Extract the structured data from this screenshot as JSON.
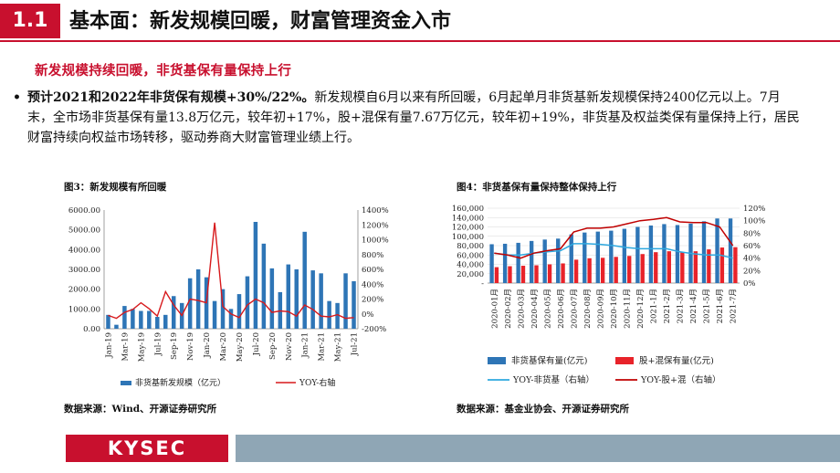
{
  "header": {
    "section_number": "1.1",
    "title": "基本面：新发规模回暖，财富管理资金入市"
  },
  "subtitle": "新发规模持续回暖，非货基保有量保持上行",
  "bullet": {
    "lead": "预计2021和2022年非货保有规模+30%/22%。",
    "body": "新发规模自6月以来有所回暖，6月起单月非货基新发规模保持2400亿元以上。7月末，全市场非货基保有量13.8万亿元，较年初+17%，股+混保有量7.67万亿元，较年初+19%，非货基及权益类保有量保持上行，居民财富持续向权益市场转移，驱动券商大财富管理业绩上行。"
  },
  "footer": {
    "logo": "KYSEC"
  },
  "chart_data": [
    {
      "type": "bar",
      "title": "图3：新发规模有所回暖",
      "source": "数据来源：Wind、开源证券研究所",
      "x_tick_labels": [
        "Jan-19",
        "Mar-19",
        "May-19",
        "Jul-19",
        "Sep-19",
        "Nov-19",
        "Jan-20",
        "Mar-20",
        "May-20",
        "Jul-20",
        "Sep-20",
        "Nov-20",
        "Jan-21",
        "Mar-21",
        "May-21",
        "Jul-21"
      ],
      "categories": [
        "Jan-19",
        "Feb-19",
        "Mar-19",
        "Apr-19",
        "May-19",
        "Jun-19",
        "Jul-19",
        "Aug-19",
        "Sep-19",
        "Oct-19",
        "Nov-19",
        "Dec-19",
        "Jan-20",
        "Feb-20",
        "Mar-20",
        "Apr-20",
        "May-20",
        "Jun-20",
        "Jul-20",
        "Aug-20",
        "Sep-20",
        "Oct-20",
        "Nov-20",
        "Dec-20",
        "Jan-21",
        "Feb-21",
        "Mar-21",
        "Apr-21",
        "May-21",
        "Jun-21",
        "Jul-21"
      ],
      "y_left": {
        "min": 0,
        "max": 6000,
        "ticks": [
          "0.00",
          "1000.00",
          "2000.00",
          "3000.00",
          "4000.00",
          "5000.00",
          "6000.00"
        ]
      },
      "y_right": {
        "min": -200,
        "max": 1400,
        "ticks": [
          "-200%",
          "0%",
          "200%",
          "400%",
          "600%",
          "800%",
          "1000%",
          "1200%",
          "1400%"
        ]
      },
      "series": [
        {
          "name": "非货基新发规模（亿元）",
          "kind": "bar",
          "axis": "left",
          "color": "#2e75b6",
          "values": [
            700,
            200,
            1150,
            1000,
            900,
            900,
            600,
            700,
            1650,
            1300,
            2550,
            3000,
            2600,
            1400,
            2000,
            1000,
            1750,
            2650,
            5400,
            4300,
            3050,
            1850,
            3250,
            3000,
            4900,
            2950,
            2800,
            1400,
            1300,
            2800,
            2400
          ]
        },
        {
          "name": "YOY-右轴",
          "kind": "line",
          "axis": "right",
          "color": "#d7191c",
          "values": [
            -20,
            -60,
            20,
            60,
            150,
            70,
            -30,
            300,
            120,
            -20,
            200,
            180,
            150,
            1230,
            100,
            0,
            -50,
            120,
            200,
            150,
            20,
            40,
            30,
            -30,
            120,
            60,
            -30,
            -40,
            -10,
            -60,
            -50
          ]
        }
      ],
      "legend_position": "bottom"
    },
    {
      "type": "bar",
      "title": "图4：非货基保有量保持整体保持上行",
      "source": "数据来源：基金业协会、开源证券研究所",
      "categories": [
        "2020-01月",
        "2020-02月",
        "2020-03月",
        "2020-04月",
        "2020-05月",
        "2020-06月",
        "2020-07月",
        "2020-08月",
        "2020-09月",
        "2020-10月",
        "2020-11月",
        "2020-12月",
        "2021-1月",
        "2021-2月",
        "2021-3月",
        "2021-4月",
        "2021-5月",
        "2021-6月",
        "2021-7月"
      ],
      "y_left": {
        "min": 0,
        "max": 160000,
        "ticks": [
          "-",
          "20,000",
          "40,000",
          "60,000",
          "80,000",
          "100,000",
          "120,000",
          "140,000",
          "160,000"
        ]
      },
      "y_right": {
        "min": 0,
        "max": 120,
        "ticks": [
          "0%",
          "20%",
          "40%",
          "60%",
          "80%",
          "100%",
          "120%"
        ]
      },
      "series": [
        {
          "name": "非货基保有量(亿元)",
          "kind": "bar",
          "axis": "left",
          "color": "#2e75b6",
          "values": [
            83000,
            84000,
            86000,
            90000,
            93000,
            95000,
            104000,
            108000,
            110000,
            112000,
            116000,
            120000,
            123000,
            126000,
            124000,
            127000,
            132000,
            138000,
            138000
          ]
        },
        {
          "name": "股+混保有量(亿元)",
          "kind": "bar",
          "axis": "left",
          "color": "#e8232a",
          "values": [
            34000,
            36000,
            37000,
            38000,
            40000,
            42000,
            50000,
            53000,
            54000,
            56000,
            58000,
            62000,
            66000,
            68000,
            66000,
            68000,
            72000,
            76000,
            76700
          ]
        },
        {
          "name": "YOY-非货基（右轴）",
          "kind": "line",
          "axis": "right",
          "color": "#2ea8df",
          "values": [
            48,
            45,
            45,
            48,
            50,
            52,
            63,
            63,
            62,
            60,
            57,
            55,
            55,
            55,
            50,
            47,
            45,
            45,
            40
          ]
        },
        {
          "name": "YOY-股+混（右轴）",
          "kind": "line",
          "axis": "right",
          "color": "#c00000",
          "values": [
            48,
            45,
            40,
            48,
            52,
            55,
            82,
            88,
            88,
            90,
            95,
            100,
            102,
            105,
            98,
            97,
            97,
            90,
            60
          ]
        }
      ],
      "legend_position": "bottom"
    }
  ]
}
